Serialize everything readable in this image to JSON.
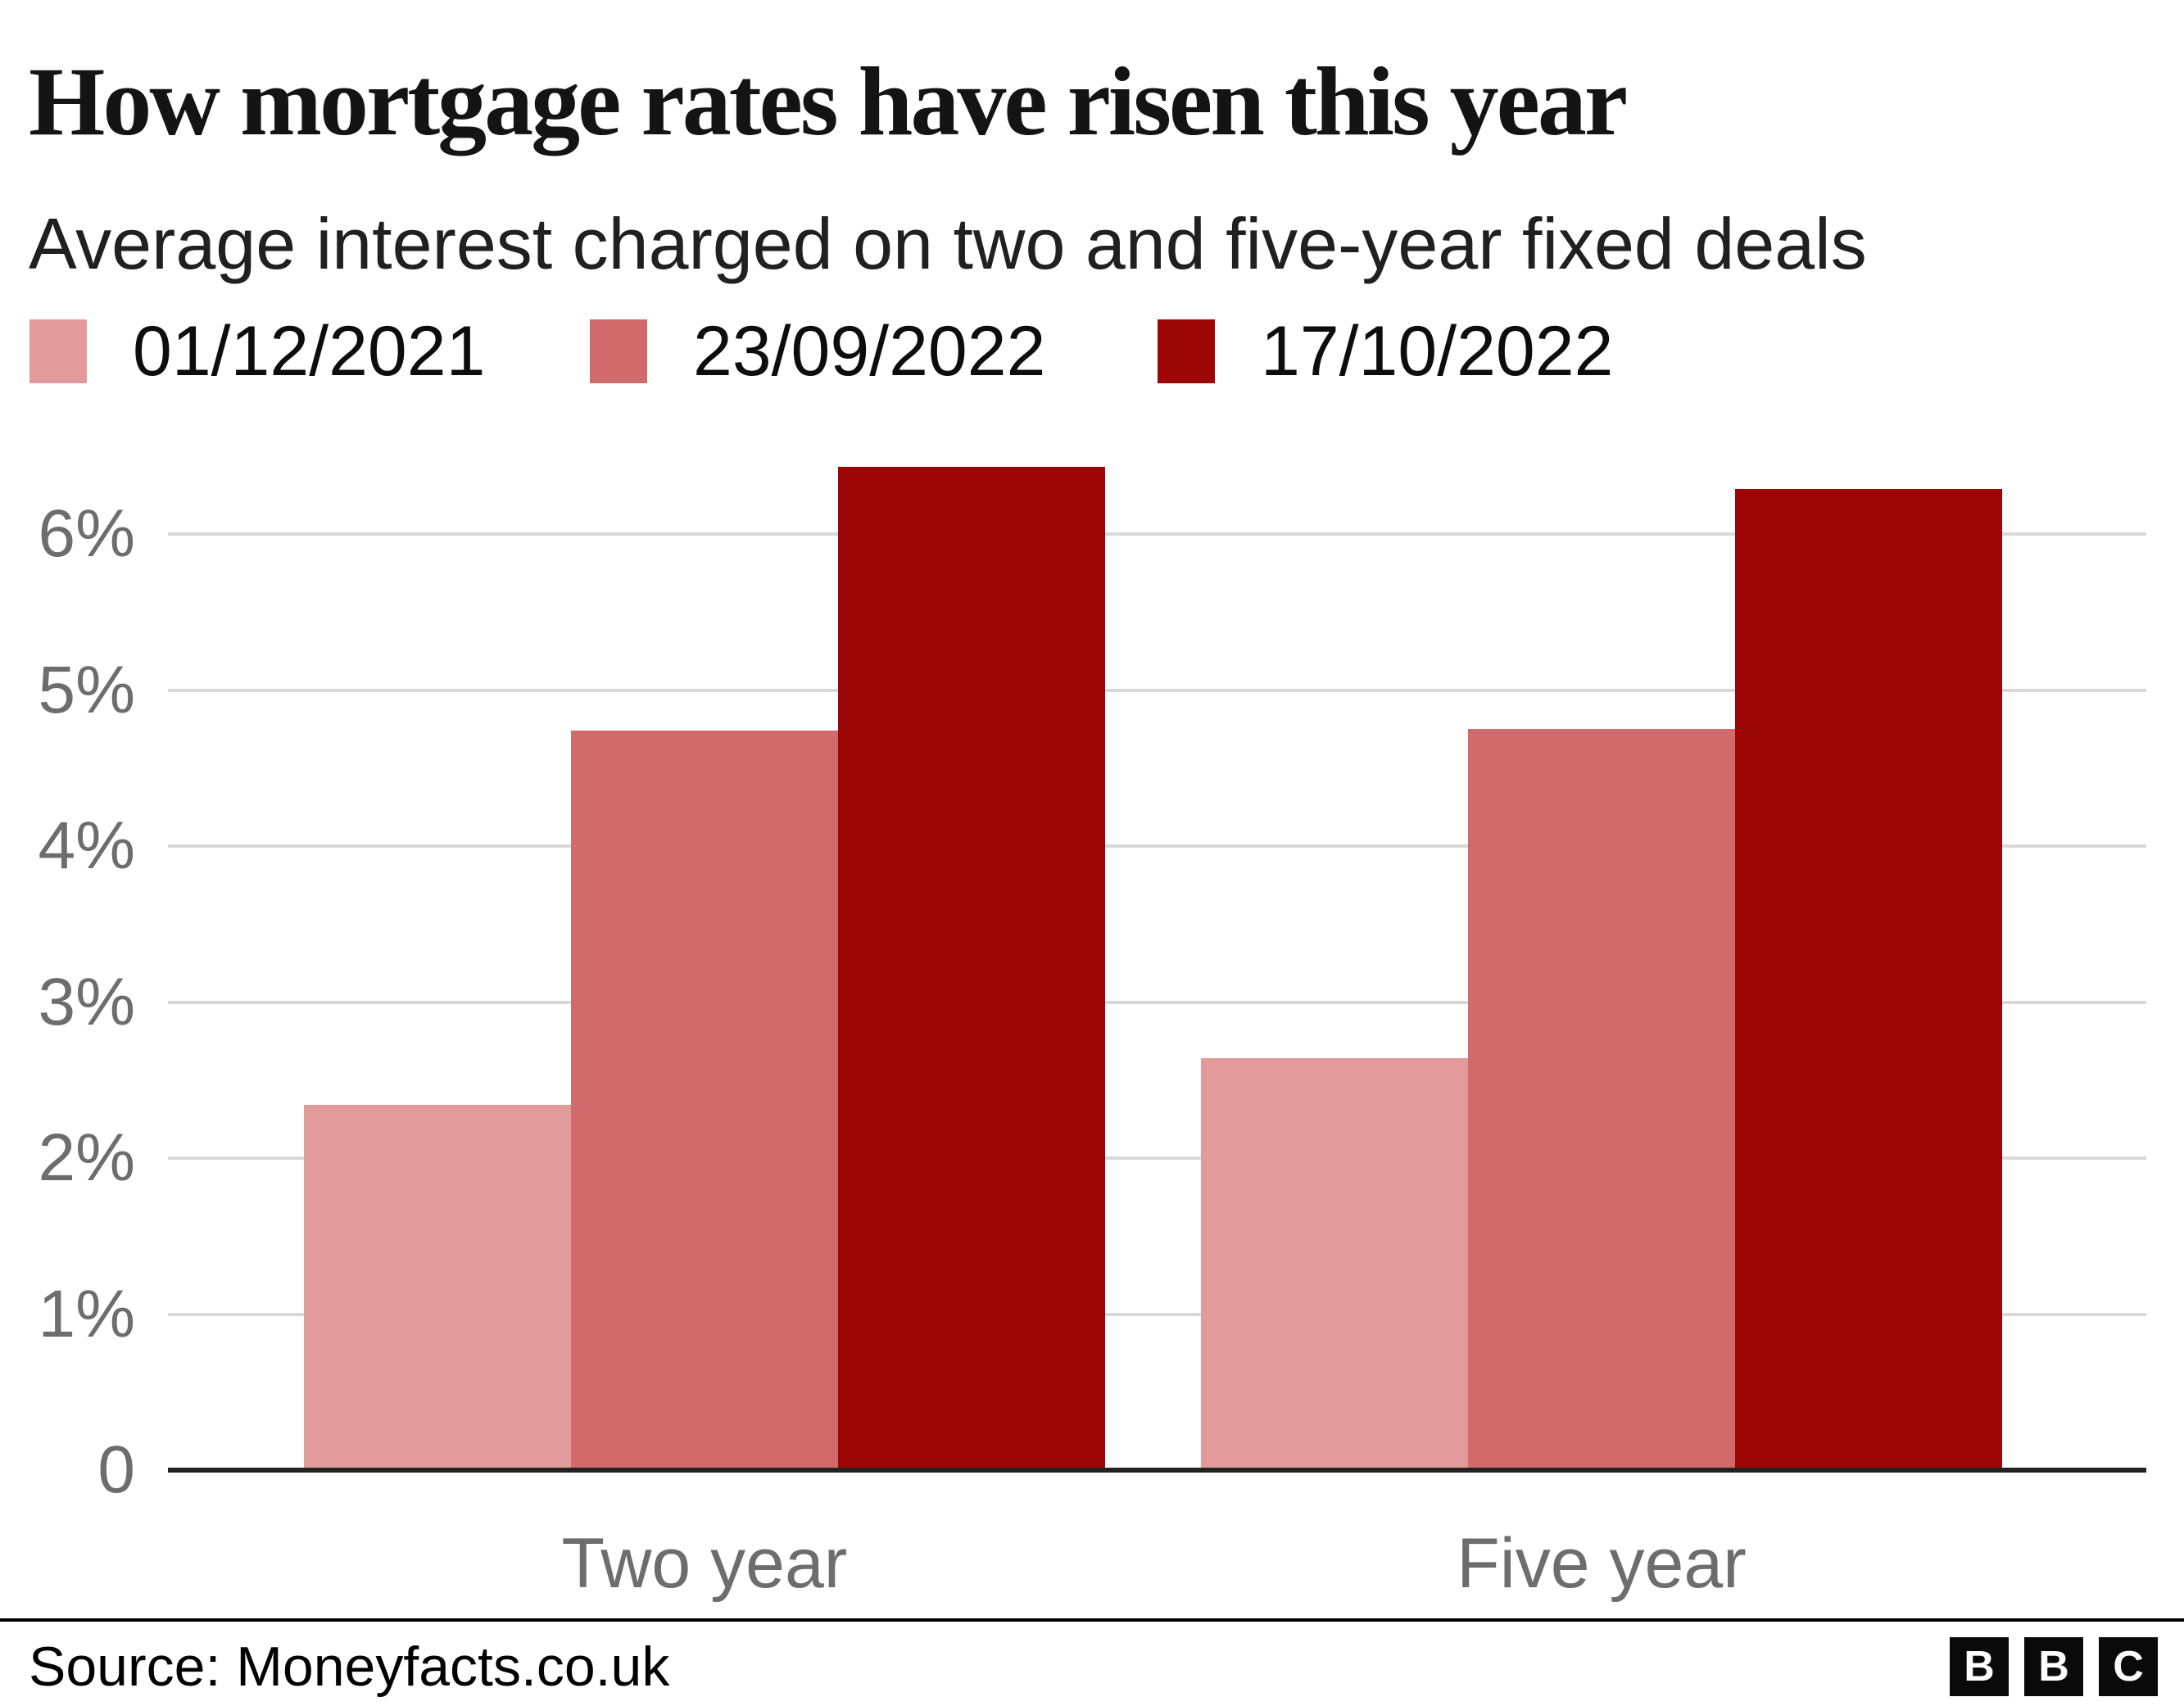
{
  "header": {
    "title": "How mortgage rates have risen this year",
    "subtitle": "Average interest charged on two and five-year fixed deals"
  },
  "chart_data": {
    "type": "bar",
    "categories": [
      "Two year",
      "Five year"
    ],
    "series": [
      {
        "name": "01/12/2021",
        "color": "#e29a9a",
        "values": [
          2.34,
          2.64
        ]
      },
      {
        "name": "23/09/2022",
        "color": "#d16a6a",
        "values": [
          4.74,
          4.75
        ]
      },
      {
        "name": "17/10/2022",
        "color": "#9c0606",
        "values": [
          6.43,
          6.29
        ]
      }
    ],
    "title": "How mortgage rates have risen this year",
    "xlabel": "",
    "ylabel": "",
    "unit": "%",
    "ylim": [
      0,
      6.6
    ],
    "yticks": [
      {
        "value": 6,
        "label": "6%"
      },
      {
        "value": 5,
        "label": "5%"
      },
      {
        "value": 4,
        "label": "4%"
      },
      {
        "value": 3,
        "label": "3%"
      },
      {
        "value": 2,
        "label": "2%"
      },
      {
        "value": 1,
        "label": "1%"
      },
      {
        "value": 0,
        "label": "0"
      }
    ],
    "grid": true,
    "legend_position": "top"
  },
  "colors": {
    "gridline": "#d8d8d8",
    "axis_line": "#222222",
    "axis_text": "#6d6d6d",
    "category_text": "#6d6d6d",
    "title_text": "#141414",
    "subtitle_text": "#202020"
  },
  "footer": {
    "source": "Source: Moneyfacts.co.uk",
    "logo_letters": [
      "B",
      "B",
      "C"
    ]
  }
}
